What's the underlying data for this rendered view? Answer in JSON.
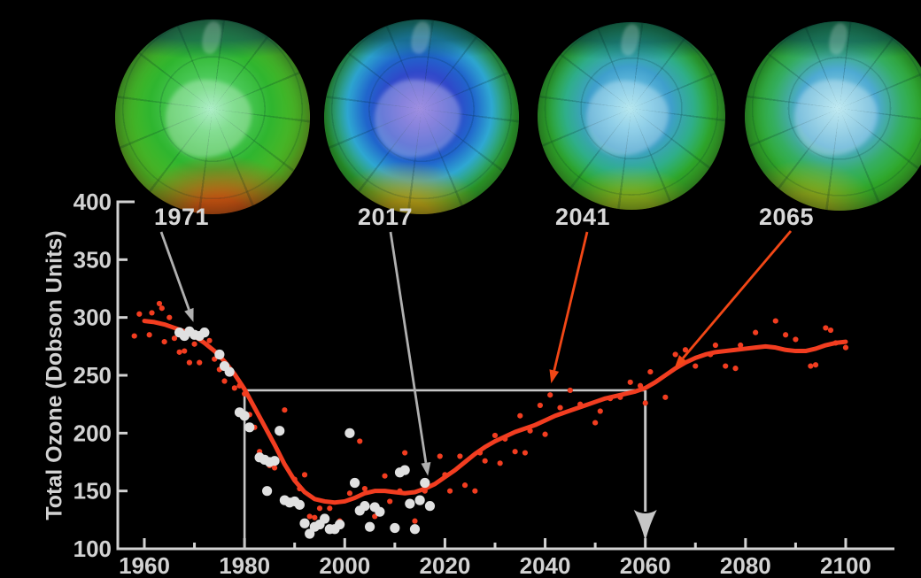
{
  "figure": {
    "background": "#000000",
    "ylabel": "Total Ozone (Dobson Units)",
    "axis_color": "#d2d2d2",
    "label_color": "#d8d8d8",
    "globes": {
      "items": [
        {
          "year": "1971",
          "stops": [
            "#90e8b4 0%",
            "#55d168 16%",
            "#2fb52f 42%",
            "#55ba24 64%",
            "#9cc41f 78%",
            "#cfa01a 88%",
            "#c26316 96%",
            "#7e4a14 100%"
          ],
          "warm": "rgba(216,79,18,0.92)",
          "warm_at": "54% 103%",
          "warm_fade": "56%"
        },
        {
          "year": "2017",
          "stops": [
            "#7b64d6 0%",
            "#5b54d0 12%",
            "#2f49ca 26%",
            "#2066cc 38%",
            "#2fa8d2 50%",
            "#31ae2e 66%",
            "#46b527 80%",
            "#9fc01e 93%",
            "#6a8a1a 100%"
          ],
          "warm": "rgba(208,160,20,0.85)",
          "warm_at": "42% 104%",
          "warm_fade": "52%"
        },
        {
          "year": "2041",
          "stops": [
            "#9cdfe9 0%",
            "#66bde0 16%",
            "#3f9fcc 30%",
            "#2fae8a 46%",
            "#31b02d 60%",
            "#4cb824 78%",
            "#9cc01e 95%"
          ],
          "warm": "rgba(200,184,24,0.6)",
          "warm_at": "50% 104%",
          "warm_fade": "46%"
        },
        {
          "year": "2065",
          "stops": [
            "#a8e2ec 0%",
            "#7cc6e0 14%",
            "#4eaad2 28%",
            "#35ae62 46%",
            "#32b02c 60%",
            "#4ab626 80%",
            "#94be20 95%"
          ],
          "warm": "rgba(196,176,24,0.65)",
          "warm_at": "32% 102%",
          "warm_fade": "48%"
        }
      ]
    }
  },
  "chart_data": {
    "type": "scatter",
    "title": "",
    "xlabel": "",
    "ylabel": "Total Ozone (Dobson Units)",
    "ylim": [
      100,
      400
    ],
    "xlim": [
      1955,
      2110
    ],
    "yticks": [
      100,
      150,
      200,
      250,
      300,
      350,
      400
    ],
    "xticks_major": [
      1960,
      1980,
      2000,
      2020,
      2040,
      2060,
      2080,
      2100
    ],
    "xticks_minor": [
      1970,
      1990,
      2010,
      2030,
      2050,
      2070,
      2090
    ],
    "grid": false,
    "legend": false,
    "colors": {
      "model": "#f23d20",
      "observations": "#e0e0e0",
      "reference": "#c6c6c6",
      "annotation_gray": "#b0b0b0",
      "annotation_red": "#f24716"
    },
    "reference": {
      "level": 237,
      "start_year": 1980,
      "end_year": 2060
    },
    "series": [
      {
        "name": "Model smoothed trend",
        "type": "line",
        "color": "#f23d20",
        "points": [
          [
            1960,
            297
          ],
          [
            1962,
            296
          ],
          [
            1964,
            294
          ],
          [
            1966,
            291
          ],
          [
            1968,
            288
          ],
          [
            1970,
            284
          ],
          [
            1972,
            278
          ],
          [
            1974,
            271
          ],
          [
            1976,
            262
          ],
          [
            1978,
            251
          ],
          [
            1980,
            238
          ],
          [
            1982,
            222
          ],
          [
            1984,
            206
          ],
          [
            1986,
            190
          ],
          [
            1988,
            173
          ],
          [
            1990,
            159
          ],
          [
            1992,
            149
          ],
          [
            1994,
            143
          ],
          [
            1996,
            141
          ],
          [
            1998,
            140
          ],
          [
            2000,
            141
          ],
          [
            2002,
            144
          ],
          [
            2004,
            148
          ],
          [
            2006,
            150
          ],
          [
            2008,
            150
          ],
          [
            2010,
            149
          ],
          [
            2012,
            148
          ],
          [
            2014,
            149
          ],
          [
            2016,
            152
          ],
          [
            2018,
            156
          ],
          [
            2020,
            162
          ],
          [
            2022,
            168
          ],
          [
            2024,
            175
          ],
          [
            2026,
            182
          ],
          [
            2028,
            188
          ],
          [
            2030,
            193
          ],
          [
            2032,
            197
          ],
          [
            2034,
            201
          ],
          [
            2036,
            204
          ],
          [
            2038,
            207
          ],
          [
            2040,
            211
          ],
          [
            2042,
            215
          ],
          [
            2044,
            218
          ],
          [
            2046,
            221
          ],
          [
            2048,
            224
          ],
          [
            2050,
            227
          ],
          [
            2052,
            230
          ],
          [
            2054,
            232
          ],
          [
            2056,
            234
          ],
          [
            2058,
            236
          ],
          [
            2060,
            239
          ],
          [
            2062,
            244
          ],
          [
            2064,
            250
          ],
          [
            2066,
            256
          ],
          [
            2068,
            261
          ],
          [
            2070,
            265
          ],
          [
            2072,
            268
          ],
          [
            2074,
            270
          ],
          [
            2076,
            271
          ],
          [
            2078,
            272
          ],
          [
            2080,
            273
          ],
          [
            2082,
            274
          ],
          [
            2084,
            275
          ],
          [
            2086,
            274
          ],
          [
            2088,
            272
          ],
          [
            2090,
            271
          ],
          [
            2092,
            271
          ],
          [
            2094,
            273
          ],
          [
            2096,
            276
          ],
          [
            2098,
            278
          ],
          [
            2100,
            279
          ]
        ]
      },
      {
        "name": "Model annual values",
        "type": "scatter",
        "color": "#f23d20",
        "marker_r": 3.1,
        "points": [
          [
            1958,
            284
          ],
          [
            1959,
            303
          ],
          [
            1961,
            285
          ],
          [
            1961.5,
            304
          ],
          [
            1963,
            312
          ],
          [
            1963.5,
            308
          ],
          [
            1964,
            279
          ],
          [
            1965,
            300
          ],
          [
            1966,
            282
          ],
          [
            1967,
            270
          ],
          [
            1968,
            271
          ],
          [
            1969,
            261
          ],
          [
            1970,
            277
          ],
          [
            1971,
            261
          ],
          [
            1972,
            286
          ],
          [
            1973,
            280
          ],
          [
            1974,
            264
          ],
          [
            1975,
            255
          ],
          [
            1976,
            245
          ],
          [
            1978,
            239
          ],
          [
            1979,
            241
          ],
          [
            1980,
            234
          ],
          [
            1981,
            216
          ],
          [
            1982,
            205
          ],
          [
            1983,
            184
          ],
          [
            1985,
            172
          ],
          [
            1986,
            170
          ],
          [
            1987,
            203
          ],
          [
            1988,
            220
          ],
          [
            1990,
            160
          ],
          [
            1991,
            152
          ],
          [
            1992,
            164
          ],
          [
            1993,
            128
          ],
          [
            1994,
            127
          ],
          [
            1995,
            135
          ],
          [
            1997,
            135
          ],
          [
            1999,
            124
          ],
          [
            2001,
            148
          ],
          [
            2003,
            193
          ],
          [
            2004,
            152
          ],
          [
            2006,
            128
          ],
          [
            2007,
            132
          ],
          [
            2008,
            163
          ],
          [
            2009,
            141
          ],
          [
            2011,
            150
          ],
          [
            2012,
            183
          ],
          [
            2014,
            124
          ],
          [
            2016,
            150
          ],
          [
            2019,
            180
          ],
          [
            2020,
            164
          ],
          [
            2021,
            150
          ],
          [
            2023,
            180
          ],
          [
            2024,
            155
          ],
          [
            2026,
            150
          ],
          [
            2027,
            183
          ],
          [
            2028,
            176
          ],
          [
            2030,
            198
          ],
          [
            2031,
            174
          ],
          [
            2032,
            195
          ],
          [
            2034,
            184
          ],
          [
            2035,
            215
          ],
          [
            2036,
            183
          ],
          [
            2037,
            202
          ],
          [
            2039,
            224
          ],
          [
            2040,
            199
          ],
          [
            2041,
            233
          ],
          [
            2043,
            222
          ],
          [
            2045,
            237
          ],
          [
            2047,
            225
          ],
          [
            2050,
            209
          ],
          [
            2051,
            219
          ],
          [
            2053,
            230
          ],
          [
            2055,
            231
          ],
          [
            2057,
            244
          ],
          [
            2059,
            241
          ],
          [
            2060,
            226
          ],
          [
            2061,
            253
          ],
          [
            2064,
            231
          ],
          [
            2066,
            268
          ],
          [
            2068,
            272
          ],
          [
            2070,
            258
          ],
          [
            2073,
            268
          ],
          [
            2074,
            276
          ],
          [
            2076,
            258
          ],
          [
            2078,
            256
          ],
          [
            2079,
            276
          ],
          [
            2082,
            287
          ],
          [
            2086,
            297
          ],
          [
            2088,
            285
          ],
          [
            2090,
            281
          ],
          [
            2093,
            258
          ],
          [
            2094,
            259
          ],
          [
            2096,
            291
          ],
          [
            2097,
            289
          ],
          [
            2098,
            278
          ],
          [
            2100,
            274
          ]
        ]
      },
      {
        "name": "Observations",
        "type": "scatter",
        "color": "#e0e0e0",
        "marker_r": 5.6,
        "points": [
          [
            1967,
            287
          ],
          [
            1968,
            284
          ],
          [
            1969,
            288
          ],
          [
            1970,
            285
          ],
          [
            1971,
            284
          ],
          [
            1972,
            287
          ],
          [
            1975,
            268
          ],
          [
            1976,
            258
          ],
          [
            1977,
            253
          ],
          [
            1979,
            218
          ],
          [
            1980,
            215
          ],
          [
            1981,
            205
          ],
          [
            1983,
            179
          ],
          [
            1984,
            177
          ],
          [
            1984.5,
            150
          ],
          [
            1985,
            175
          ],
          [
            1986,
            176
          ],
          [
            1987,
            202
          ],
          [
            1988,
            142
          ],
          [
            1989,
            140
          ],
          [
            1990,
            141
          ],
          [
            1991,
            138
          ],
          [
            1992,
            122
          ],
          [
            1993,
            113
          ],
          [
            1994,
            119
          ],
          [
            1995,
            121
          ],
          [
            1996,
            126
          ],
          [
            1997,
            117
          ],
          [
            1998,
            117
          ],
          [
            1999,
            121
          ],
          [
            2001,
            200
          ],
          [
            2002,
            157
          ],
          [
            2003,
            133
          ],
          [
            2004,
            137
          ],
          [
            2005,
            119
          ],
          [
            2006,
            136
          ],
          [
            2007,
            132
          ],
          [
            2010,
            118
          ],
          [
            2011,
            166
          ],
          [
            2012,
            168
          ],
          [
            2013,
            139
          ],
          [
            2014,
            117
          ],
          [
            2015,
            142
          ],
          [
            2016,
            157
          ],
          [
            2017,
            137
          ]
        ]
      }
    ],
    "annotations": [
      {
        "label": "1971",
        "color": "#b0b0b0",
        "target_year": 1969.8,
        "target_value": 296
      },
      {
        "label": "2017",
        "color": "#b0b0b0",
        "target_year": 2016.6,
        "target_value": 163
      },
      {
        "label": "2041",
        "color": "#f24716",
        "target_year": 2041.2,
        "target_value": 243
      },
      {
        "label": "2065",
        "color": "#f24716",
        "target_year": 2065.8,
        "target_value": 256
      }
    ]
  }
}
